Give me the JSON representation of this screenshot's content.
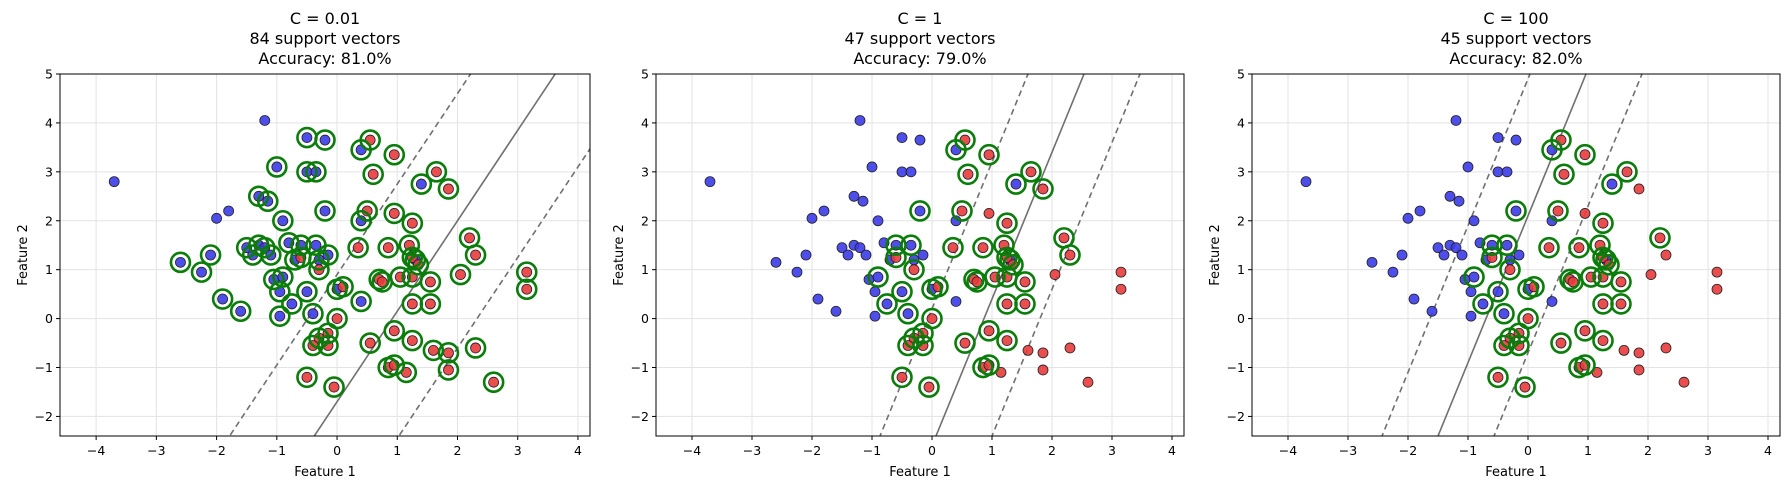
{
  "chart_data": [
    {
      "type": "scatter",
      "title": [
        "C = 0.01",
        "84 support vectors",
        "Accuracy: 81.0%"
      ],
      "xlabel": "Feature 1",
      "ylabel": "Feature 2",
      "xlim": [
        -4.6,
        4.2
      ],
      "ylim": [
        -2.4,
        5.0
      ],
      "xticks": [
        -4,
        -3,
        -2,
        -1,
        0,
        1,
        2,
        3,
        4
      ],
      "yticks": [
        -2,
        -1,
        0,
        1,
        2,
        3,
        4,
        5
      ],
      "grid": true,
      "boundary": {
        "slope": 1.85,
        "intercept": -1.7,
        "margin_offset": 2.6
      },
      "support_vector_indices": [
        4,
        5,
        6,
        7,
        8,
        9,
        10,
        11,
        12,
        13,
        14,
        15,
        16,
        17,
        18,
        19,
        20,
        21,
        22,
        23,
        24,
        25,
        26,
        27,
        28,
        29,
        30,
        31,
        32,
        33,
        34,
        35,
        36,
        37,
        38,
        39,
        40,
        41,
        42,
        43,
        44,
        45,
        46,
        47,
        48,
        49,
        50,
        51,
        52,
        53,
        54,
        55,
        56,
        57,
        58,
        59,
        60,
        61,
        62,
        63,
        64,
        65,
        66,
        67,
        68,
        69,
        70,
        71,
        72,
        73,
        74,
        75,
        76,
        77,
        78,
        79,
        80,
        81,
        82,
        83,
        84,
        85,
        86,
        87
      ]
    },
    {
      "type": "scatter",
      "title": [
        "C = 1",
        "47 support vectors",
        "Accuracy: 79.0%"
      ],
      "xlabel": "Feature 1",
      "ylabel": "Feature 2",
      "xlim": [
        -4.6,
        4.2
      ],
      "ylim": [
        -2.4,
        5.0
      ],
      "xticks": [
        -4,
        -3,
        -2,
        -1,
        0,
        1,
        2,
        3,
        4
      ],
      "yticks": [
        -2,
        -1,
        0,
        1,
        2,
        3,
        4,
        5
      ],
      "grid": true,
      "boundary": {
        "slope": 3.0,
        "intercept": -2.6,
        "margin_offset": 2.8
      },
      "support_vector_indices": [
        22,
        26,
        28,
        31,
        32,
        34,
        35,
        36,
        37,
        40,
        41,
        42,
        43,
        44,
        45,
        47,
        48,
        49,
        50,
        51,
        52,
        53,
        54,
        55,
        56,
        57,
        58,
        59,
        60,
        61,
        62,
        63,
        64,
        65,
        66,
        67,
        68,
        69,
        70,
        71,
        72,
        73,
        74,
        75,
        76,
        77,
        79
      ]
    },
    {
      "type": "scatter",
      "title": [
        "C = 100",
        "45 support vectors",
        "Accuracy: 82.0%"
      ],
      "xlabel": "Feature 1",
      "ylabel": "Feature 2",
      "xlim": [
        -4.6,
        4.2
      ],
      "ylim": [
        -2.4,
        5.0
      ],
      "xticks": [
        -4,
        -3,
        -2,
        -1,
        0,
        1,
        2,
        3,
        4
      ],
      "yticks": [
        -2,
        -1,
        0,
        1,
        2,
        3,
        4,
        5
      ],
      "grid": true,
      "boundary": {
        "slope": 3.0,
        "intercept": 2.1,
        "margin_offset": 2.8
      },
      "support_vector_indices": [
        22,
        26,
        28,
        31,
        32,
        34,
        35,
        36,
        37,
        40,
        41,
        42,
        43,
        44,
        45,
        47,
        48,
        49,
        50,
        51,
        52,
        53,
        54,
        55,
        56,
        57,
        58,
        59,
        60,
        61,
        62,
        63,
        64,
        65,
        66,
        67,
        68,
        69,
        70,
        71,
        72,
        73,
        74,
        75,
        76
      ]
    }
  ],
  "points": [
    {
      "x": -3.7,
      "y": 2.8,
      "c": 0
    },
    {
      "x": -1.2,
      "y": 4.05,
      "c": 0
    },
    {
      "x": -2.0,
      "y": 2.05,
      "c": 0
    },
    {
      "x": -1.8,
      "y": 2.2,
      "c": 0
    },
    {
      "x": -2.6,
      "y": 1.15,
      "c": 0
    },
    {
      "x": -2.25,
      "y": 0.95,
      "c": 0
    },
    {
      "x": -2.1,
      "y": 1.3,
      "c": 0
    },
    {
      "x": -1.9,
      "y": 0.4,
      "c": 0
    },
    {
      "x": -1.6,
      "y": 0.15,
      "c": 0
    },
    {
      "x": -1.5,
      "y": 1.45,
      "c": 0
    },
    {
      "x": -1.4,
      "y": 1.3,
      "c": 0
    },
    {
      "x": -1.3,
      "y": 1.5,
      "c": 0
    },
    {
      "x": -1.2,
      "y": 1.45,
      "c": 0
    },
    {
      "x": -1.1,
      "y": 1.3,
      "c": 0
    },
    {
      "x": -1.05,
      "y": 0.8,
      "c": 0
    },
    {
      "x": -0.95,
      "y": 0.55,
      "c": 0
    },
    {
      "x": -1.3,
      "y": 2.5,
      "c": 0
    },
    {
      "x": -1.15,
      "y": 2.4,
      "c": 0
    },
    {
      "x": -1.0,
      "y": 3.1,
      "c": 0
    },
    {
      "x": -0.9,
      "y": 2.0,
      "c": 0
    },
    {
      "x": -0.8,
      "y": 1.55,
      "c": 0
    },
    {
      "x": -0.7,
      "y": 1.2,
      "c": 0
    },
    {
      "x": -0.6,
      "y": 1.5,
      "c": 0
    },
    {
      "x": -0.5,
      "y": 3.0,
      "c": 0
    },
    {
      "x": -0.5,
      "y": 3.7,
      "c": 0
    },
    {
      "x": -0.35,
      "y": 3.0,
      "c": 0
    },
    {
      "x": -0.35,
      "y": 1.5,
      "c": 0
    },
    {
      "x": -0.3,
      "y": 1.2,
      "c": 0
    },
    {
      "x": -0.2,
      "y": 2.2,
      "c": 0
    },
    {
      "x": -0.15,
      "y": 1.3,
      "c": 0
    },
    {
      "x": -0.2,
      "y": 3.65,
      "c": 0
    },
    {
      "x": -0.5,
      "y": 0.55,
      "c": 0
    },
    {
      "x": -0.4,
      "y": 0.1,
      "c": 0
    },
    {
      "x": -0.95,
      "y": 0.05,
      "c": 0
    },
    {
      "x": -0.75,
      "y": 0.3,
      "c": 0
    },
    {
      "x": -0.9,
      "y": 0.85,
      "c": 0
    },
    {
      "x": 0.0,
      "y": 0.6,
      "c": 0
    },
    {
      "x": 0.4,
      "y": 3.45,
      "c": 0
    },
    {
      "x": 0.4,
      "y": 2.0,
      "c": 0
    },
    {
      "x": 0.4,
      "y": 0.35,
      "c": 0
    },
    {
      "x": 1.4,
      "y": 2.75,
      "c": 0
    },
    {
      "x": 1.3,
      "y": 1.2,
      "c": 0
    },
    {
      "x": 0.55,
      "y": 3.65,
      "c": 1
    },
    {
      "x": 0.6,
      "y": 2.95,
      "c": 1
    },
    {
      "x": 0.95,
      "y": 3.35,
      "c": 1
    },
    {
      "x": 0.5,
      "y": 2.2,
      "c": 1
    },
    {
      "x": 0.95,
      "y": 2.15,
      "c": 1
    },
    {
      "x": 1.25,
      "y": 1.95,
      "c": 1
    },
    {
      "x": 0.35,
      "y": 1.45,
      "c": 1
    },
    {
      "x": 0.85,
      "y": 1.45,
      "c": 1
    },
    {
      "x": 1.2,
      "y": 1.5,
      "c": 1
    },
    {
      "x": 1.25,
      "y": 1.25,
      "c": 1
    },
    {
      "x": 1.35,
      "y": 1.1,
      "c": 1
    },
    {
      "x": 1.05,
      "y": 0.85,
      "c": 1
    },
    {
      "x": 1.25,
      "y": 0.85,
      "c": 1
    },
    {
      "x": 0.7,
      "y": 0.8,
      "c": 1
    },
    {
      "x": 0.75,
      "y": 0.75,
      "c": 1
    },
    {
      "x": 1.25,
      "y": 0.3,
      "c": 1
    },
    {
      "x": 1.55,
      "y": 0.3,
      "c": 1
    },
    {
      "x": 1.55,
      "y": 0.75,
      "c": 1
    },
    {
      "x": 0.1,
      "y": 0.65,
      "c": 1
    },
    {
      "x": -0.3,
      "y": 1.0,
      "c": 1
    },
    {
      "x": -0.6,
      "y": 1.25,
      "c": 1
    },
    {
      "x": 0.0,
      "y": -0.0,
      "c": 1
    },
    {
      "x": -0.15,
      "y": -0.3,
      "c": 1
    },
    {
      "x": -0.3,
      "y": -0.4,
      "c": 1
    },
    {
      "x": -0.4,
      "y": -0.55,
      "c": 1
    },
    {
      "x": -0.15,
      "y": -0.55,
      "c": 1
    },
    {
      "x": -0.5,
      "y": -1.2,
      "c": 1
    },
    {
      "x": -0.05,
      "y": -1.4,
      "c": 1
    },
    {
      "x": 0.55,
      "y": -0.5,
      "c": 1
    },
    {
      "x": 0.95,
      "y": -0.25,
      "c": 1
    },
    {
      "x": 1.25,
      "y": -0.45,
      "c": 1
    },
    {
      "x": 0.85,
      "y": -1.0,
      "c": 1
    },
    {
      "x": 0.95,
      "y": -0.95,
      "c": 1
    },
    {
      "x": 1.65,
      "y": 3.0,
      "c": 1
    },
    {
      "x": 2.2,
      "y": 1.65,
      "c": 1
    },
    {
      "x": 2.3,
      "y": 1.3,
      "c": 1
    },
    {
      "x": 2.05,
      "y": 0.9,
      "c": 1
    },
    {
      "x": 1.85,
      "y": 2.65,
      "c": 1
    },
    {
      "x": 1.6,
      "y": -0.65,
      "c": 1
    },
    {
      "x": 1.85,
      "y": -0.7,
      "c": 1
    },
    {
      "x": 2.3,
      "y": -0.6,
      "c": 1
    },
    {
      "x": 1.85,
      "y": -1.05,
      "c": 1
    },
    {
      "x": 1.15,
      "y": -1.1,
      "c": 1
    },
    {
      "x": 2.6,
      "y": -1.3,
      "c": 1
    },
    {
      "x": 3.15,
      "y": 0.95,
      "c": 1
    },
    {
      "x": 3.15,
      "y": 0.6,
      "c": 1
    }
  ],
  "colors": {
    "class0": "#3b3be8",
    "class1": "#e83b3b",
    "support_ring": "#0a7d0a",
    "boundary": "#707070",
    "grid": "#e3e3e3"
  }
}
